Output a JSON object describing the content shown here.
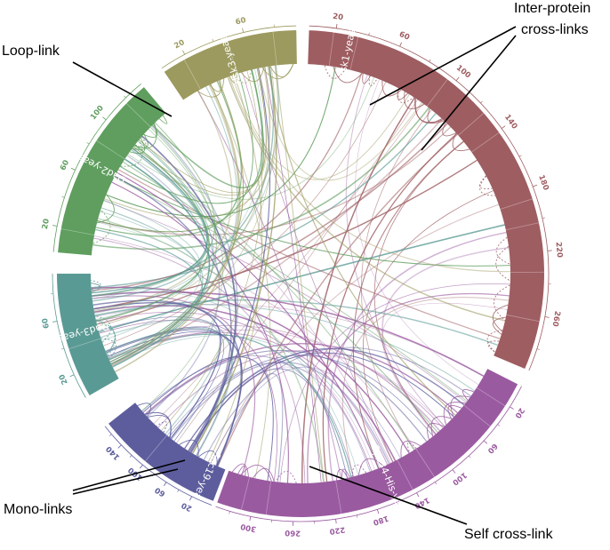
{
  "figure": {
    "segments": [
      {
        "name": "Ask1-yeast",
        "color": "#9e5d61",
        "ticks": [
          "20",
          "60",
          "100",
          "140",
          "180",
          "220",
          "260"
        ]
      },
      {
        "name": "Spc34-His-yeast",
        "color": "#9a5aa0",
        "ticks": [
          "20",
          "60",
          "100",
          "140",
          "180",
          "220",
          "260",
          "300"
        ]
      },
      {
        "name": "Spc19-yeast",
        "color": "#5d5d9e",
        "ticks": [
          "20",
          "60",
          "100",
          "140"
        ]
      },
      {
        "name": "Dad3-yeast",
        "color": "#5a9a94",
        "ticks": [
          "20",
          "60"
        ]
      },
      {
        "name": "Dad2-yeast",
        "color": "#5f9e5e",
        "ticks": [
          "20",
          "60",
          "100"
        ]
      },
      {
        "name": "Hsk3-yeast",
        "color": "#9c9a5e",
        "ticks": [
          "20",
          "60"
        ]
      }
    ],
    "annotations": {
      "loop_link": "Loop-link",
      "inter_protein_line1": "Inter-protein",
      "inter_protein_line2": "cross-links",
      "mono_links": "Mono-links",
      "self_cross_link": "Self cross-link"
    }
  }
}
